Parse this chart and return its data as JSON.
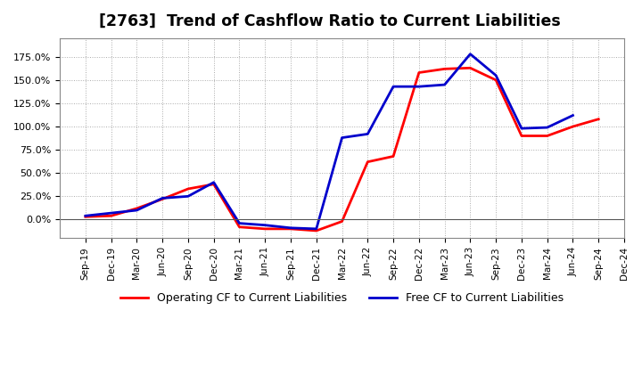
{
  "title": "[2763]  Trend of Cashflow Ratio to Current Liabilities",
  "x_labels": [
    "Sep-19",
    "Dec-19",
    "Mar-20",
    "Jun-20",
    "Sep-20",
    "Dec-20",
    "Mar-21",
    "Jun-21",
    "Sep-21",
    "Dec-21",
    "Mar-22",
    "Jun-22",
    "Sep-22",
    "Dec-22",
    "Mar-23",
    "Jun-23",
    "Sep-23",
    "Dec-23",
    "Mar-24",
    "Jun-24",
    "Sep-24",
    "Dec-24"
  ],
  "operating_cf": [
    3.0,
    4.0,
    12.0,
    22.0,
    33.0,
    38.0,
    -8.0,
    -10.0,
    -10.0,
    -12.0,
    -2.0,
    62.0,
    68.0,
    158.0,
    162.0,
    163.0,
    150.0,
    90.0,
    90.0,
    100.0,
    108.0,
    null
  ],
  "free_cf": [
    4.0,
    7.0,
    10.0,
    23.0,
    25.0,
    40.0,
    -4.0,
    -6.0,
    -9.0,
    -10.0,
    88.0,
    92.0,
    143.0,
    143.0,
    145.0,
    178.0,
    155.0,
    98.0,
    99.0,
    112.0,
    null,
    null
  ],
  "operating_color": "#FF0000",
  "free_color": "#0000CC",
  "background_color": "#FFFFFF",
  "grid_color": "#AAAAAA",
  "ylim": [
    -20.0,
    195.0
  ],
  "yticks": [
    0.0,
    25.0,
    50.0,
    75.0,
    100.0,
    125.0,
    150.0,
    175.0
  ]
}
